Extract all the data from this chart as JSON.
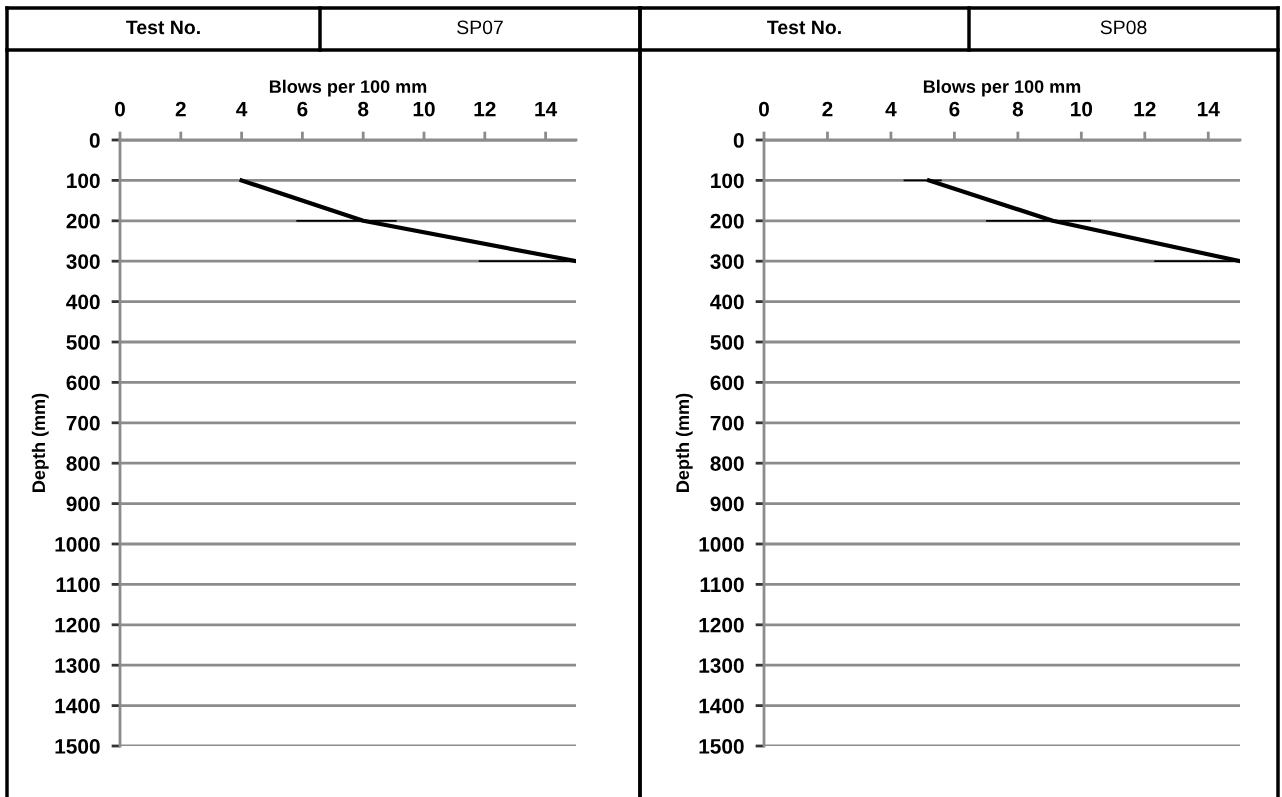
{
  "chart_data": [
    {
      "type": "line",
      "title": "Test No.",
      "subtitle": "SP07",
      "xlabel": "Blows per 100 mm",
      "ylabel": "Depth (mm)",
      "series": [
        {
          "color": "#000000",
          "x": [
            4,
            8,
            15
          ],
          "values": [
            100,
            200,
            300
          ],
          "xerrors": [
            null,
            [
              5.8,
              9.1
            ],
            [
              11.8,
              15
            ]
          ]
        }
      ],
      "xlim": [
        0,
        15
      ],
      "xticks": [
        0,
        2,
        4,
        6,
        8,
        10,
        12,
        14
      ],
      "ylim": [
        1500,
        0
      ],
      "yticks": [
        0,
        100,
        200,
        300,
        400,
        500,
        600,
        700,
        800,
        900,
        1000,
        1100,
        1200,
        1300,
        1400,
        1500
      ],
      "grid": "y"
    },
    {
      "type": "line",
      "title": "Test No.",
      "subtitle": "SP08",
      "xlabel": "Blows per 100 mm",
      "ylabel": "Depth (mm)",
      "series": [
        {
          "color": "#000000",
          "x": [
            5.2,
            9.1,
            15
          ],
          "values": [
            100,
            200,
            300
          ],
          "xerrors": [
            [
              4.4,
              5.6
            ],
            [
              7.0,
              10.3
            ],
            [
              12.3,
              15
            ]
          ]
        }
      ],
      "xlim": [
        0,
        15
      ],
      "xticks": [
        0,
        2,
        4,
        6,
        8,
        10,
        12,
        14
      ],
      "ylim": [
        1500,
        0
      ],
      "yticks": [
        0,
        100,
        200,
        300,
        400,
        500,
        600,
        700,
        800,
        900,
        1000,
        1100,
        1200,
        1300,
        1400,
        1500
      ],
      "grid": "y"
    }
  ]
}
